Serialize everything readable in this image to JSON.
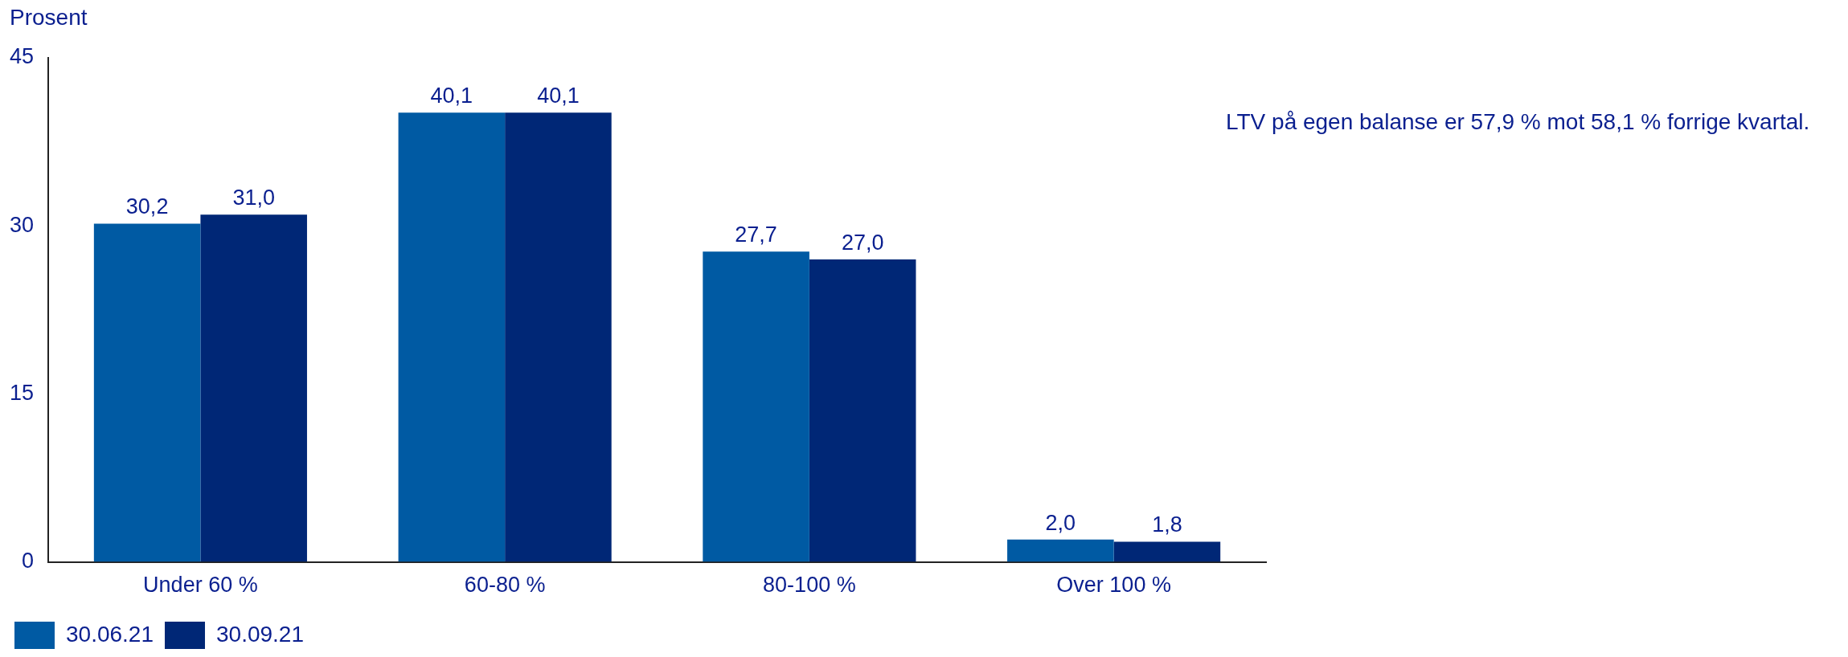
{
  "chart_data": {
    "type": "bar",
    "ylabel": "Prosent",
    "categories": [
      "Under 60 %",
      "60-80 %",
      "80-100 %",
      "Over 100 %"
    ],
    "series": [
      {
        "name": "30.06.21",
        "color": "#005aa3",
        "values": [
          30.2,
          40.1,
          27.7,
          2.0
        ],
        "value_labels": [
          "30,2",
          "40,1",
          "27,7",
          "2,0"
        ]
      },
      {
        "name": "30.09.21",
        "color": "#002776",
        "values": [
          31.0,
          40.1,
          27.0,
          1.8
        ],
        "value_labels": [
          "31,0",
          "40,1",
          "27,0",
          "1,8"
        ]
      }
    ],
    "ylim": [
      0,
      45
    ],
    "yticks": [
      0,
      15,
      30,
      45
    ],
    "grid": false,
    "legend": "bottom left",
    "annotations": [
      "LTV på egen balanse er 57,9 % mot 58,1 % forrige kvartal."
    ]
  }
}
